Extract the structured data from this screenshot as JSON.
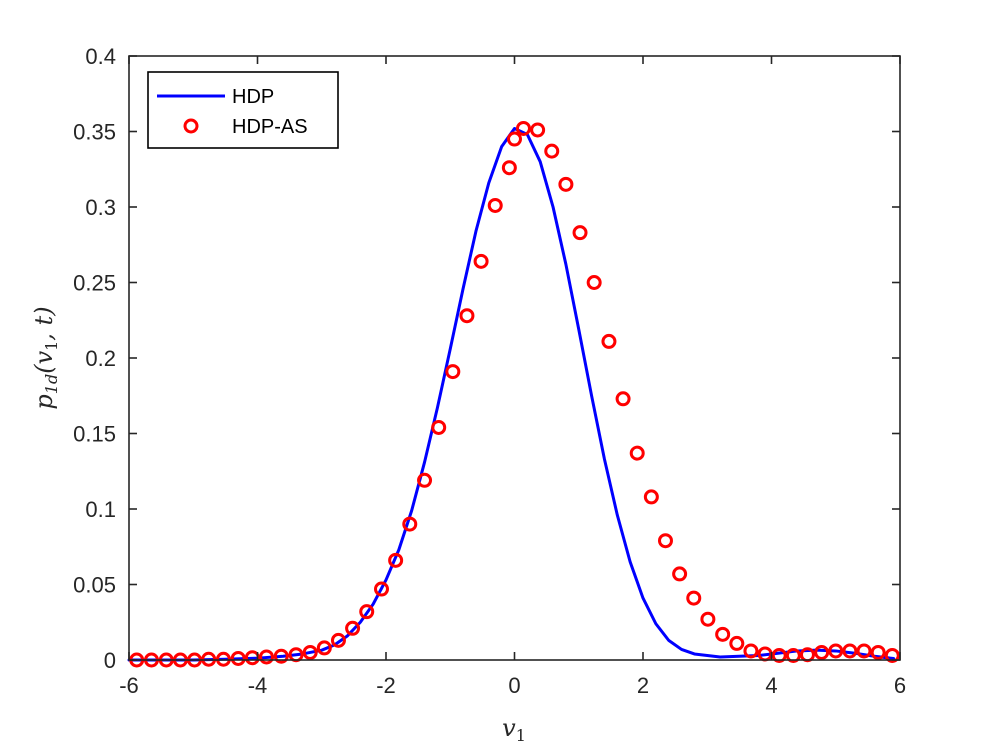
{
  "chart_data": {
    "type": "line",
    "title": "",
    "xlabel": "v1",
    "ylabel": "p1d(v1, t)",
    "xlim": [
      -6,
      6
    ],
    "ylim": [
      0,
      0.4
    ],
    "xticks": [
      -6,
      -4,
      -2,
      0,
      2,
      4,
      6
    ],
    "yticks": [
      0,
      0.05,
      0.1,
      0.15,
      0.2,
      0.25,
      0.3,
      0.35,
      0.4
    ],
    "xtick_labels": [
      "-6",
      "-4",
      "-2",
      "0",
      "2",
      "4",
      "6"
    ],
    "ytick_labels": [
      "0",
      "0.05",
      "0.1",
      "0.15",
      "0.2",
      "0.25",
      "0.3",
      "0.35",
      "0.4"
    ],
    "grid": false,
    "legend_position": "top-left",
    "series": [
      {
        "name": "HDP",
        "style": "line",
        "color": "#0000ff",
        "x": [
          -6.0,
          -5.5,
          -5.0,
          -4.5,
          -4.0,
          -3.6,
          -3.3,
          -3.0,
          -2.8,
          -2.6,
          -2.4,
          -2.2,
          -2.0,
          -1.8,
          -1.6,
          -1.4,
          -1.2,
          -1.0,
          -0.8,
          -0.6,
          -0.4,
          -0.2,
          0.0,
          0.2,
          0.4,
          0.6,
          0.8,
          1.0,
          1.2,
          1.4,
          1.6,
          1.8,
          2.0,
          2.2,
          2.4,
          2.6,
          2.8,
          3.0,
          3.2,
          3.5,
          3.8,
          4.1,
          4.4,
          4.7,
          5.0,
          5.3,
          5.6,
          5.9
        ],
        "y": [
          0.0,
          0.0,
          0.0,
          0.0005,
          0.0012,
          0.0025,
          0.004,
          0.0065,
          0.01,
          0.016,
          0.025,
          0.037,
          0.053,
          0.073,
          0.099,
          0.131,
          0.167,
          0.206,
          0.246,
          0.284,
          0.316,
          0.34,
          0.352,
          0.348,
          0.33,
          0.3,
          0.262,
          0.219,
          0.175,
          0.133,
          0.096,
          0.065,
          0.041,
          0.024,
          0.013,
          0.007,
          0.004,
          0.003,
          0.002,
          0.0025,
          0.003,
          0.0045,
          0.006,
          0.0065,
          0.006,
          0.0045,
          0.0025,
          0.001
        ]
      },
      {
        "name": "HDP-AS",
        "style": "circle-markers",
        "color": "#ff0000",
        "x": [
          -5.88,
          -5.65,
          -5.42,
          -5.2,
          -4.98,
          -4.76,
          -4.53,
          -4.3,
          -4.08,
          -3.86,
          -3.63,
          -3.4,
          -3.18,
          -2.96,
          -2.74,
          -2.52,
          -2.3,
          -2.07,
          -1.85,
          -1.63,
          -1.4,
          -1.18,
          -0.96,
          -0.74,
          -0.52,
          -0.3,
          -0.08,
          0.0,
          0.14,
          0.36,
          0.58,
          0.8,
          1.02,
          1.24,
          1.47,
          1.69,
          1.91,
          2.13,
          2.35,
          2.57,
          2.79,
          3.01,
          3.24,
          3.46,
          3.68,
          3.9,
          4.12,
          4.34,
          4.56,
          4.78,
          5.0,
          5.22,
          5.44,
          5.66,
          5.88
        ],
        "y": [
          0.0,
          0.0,
          0.0,
          0.0,
          0.0,
          0.0005,
          0.0005,
          0.001,
          0.0015,
          0.002,
          0.0025,
          0.0035,
          0.005,
          0.008,
          0.013,
          0.021,
          0.032,
          0.047,
          0.066,
          0.09,
          0.119,
          0.154,
          0.191,
          0.228,
          0.264,
          0.301,
          0.326,
          0.345,
          0.352,
          0.351,
          0.337,
          0.315,
          0.283,
          0.25,
          0.211,
          0.173,
          0.137,
          0.108,
          0.079,
          0.057,
          0.041,
          0.027,
          0.017,
          0.011,
          0.006,
          0.004,
          0.003,
          0.003,
          0.0035,
          0.005,
          0.006,
          0.006,
          0.006,
          0.005,
          0.003
        ]
      }
    ]
  }
}
